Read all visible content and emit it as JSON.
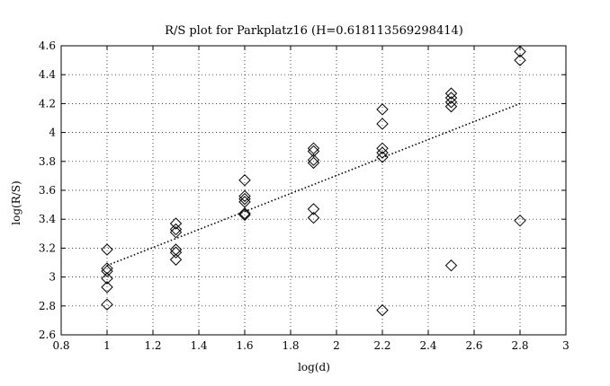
{
  "chart_data": {
    "type": "scatter",
    "title": "R/S plot for Parkplatz16 (H=0.618113569298414)",
    "xlabel": "log(d)",
    "ylabel": "log(R/S)",
    "xlim": [
      0.8,
      3
    ],
    "ylim": [
      2.6,
      4.6
    ],
    "xticks": [
      0.8,
      1,
      1.2,
      1.4,
      1.6,
      1.8,
      2,
      2.2,
      2.4,
      2.6,
      2.8,
      3
    ],
    "xtick_labels": [
      "0.8",
      "1",
      "1.2",
      "1.4",
      "1.6",
      "1.8",
      "2",
      "2.2",
      "2.4",
      "2.6",
      "2.8",
      "3"
    ],
    "yticks": [
      2.6,
      2.8,
      3,
      3.2,
      3.4,
      3.6,
      3.8,
      4,
      4.2,
      4.4,
      4.6
    ],
    "ytick_labels": [
      "2.6",
      "2.8",
      "3",
      "3.2",
      "3.4",
      "3.6",
      "3.8",
      "4",
      "4.2",
      "4.4",
      "4.6"
    ],
    "grid": true,
    "marker": "diamond",
    "series": [
      {
        "x": [
          1.0,
          1.0,
          1.0,
          1.0,
          1.0,
          1.0,
          1.3,
          1.3,
          1.3,
          1.3,
          1.3,
          1.3,
          1.6,
          1.6,
          1.6,
          1.6,
          1.6,
          1.6,
          1.9,
          1.9,
          1.9,
          1.9,
          1.9,
          1.9,
          2.2,
          2.2,
          2.2,
          2.2,
          2.2,
          2.2,
          2.5,
          2.5,
          2.5,
          2.5,
          2.5,
          2.8,
          2.8,
          2.8
        ],
        "y": [
          3.19,
          3.06,
          3.04,
          2.99,
          2.93,
          2.81,
          3.37,
          3.33,
          3.31,
          3.19,
          3.17,
          3.12,
          3.67,
          3.56,
          3.54,
          3.52,
          3.44,
          3.43,
          3.89,
          3.87,
          3.81,
          3.79,
          3.47,
          3.41,
          4.16,
          4.06,
          3.89,
          3.86,
          3.83,
          2.77,
          4.27,
          4.24,
          4.21,
          4.18,
          3.08,
          4.56,
          4.5,
          3.39
        ]
      },
      {
        "type": "line",
        "style": "dotted",
        "x": [
          1.0,
          2.8
        ],
        "y": [
          3.08,
          4.2
        ]
      }
    ]
  }
}
